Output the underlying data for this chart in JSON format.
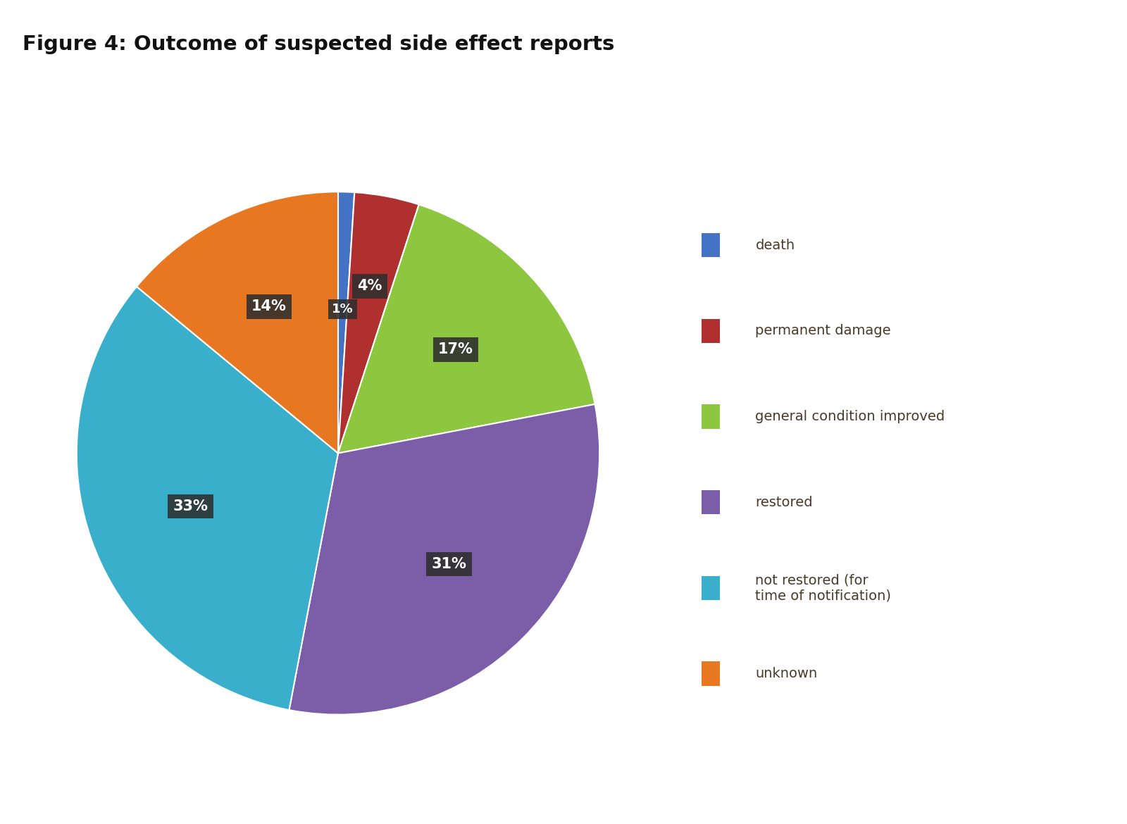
{
  "title": "Figure 4: Outcome of suspected side effect reports",
  "title_fontsize": 21,
  "title_fontweight": "bold",
  "slices": [
    {
      "label": "death",
      "value": 1,
      "color": "#4472C4",
      "pct": "1%"
    },
    {
      "label": "permanent damage",
      "value": 4,
      "color": "#B03030",
      "pct": "4%"
    },
    {
      "label": "general condition improved",
      "value": 17,
      "color": "#8DC63F",
      "pct": "17%"
    },
    {
      "label": "restored",
      "value": 31,
      "color": "#7B5EA7",
      "pct": "31%"
    },
    {
      "label": "not restored (for\ntime of notification)",
      "value": 33,
      "color": "#3AAFCC",
      "pct": "33%"
    },
    {
      "label": "unknown",
      "value": 14,
      "color": "#E87722",
      "pct": "14%"
    }
  ],
  "bg_color_top": "#C8CBCC",
  "bg_color_bottom": "#A8AAAB",
  "title_bg": "#FFFFFF",
  "legend_bg": "#D5D7D8",
  "label_box_color": "#2E2E2E",
  "label_text_color": "#FFFFFF",
  "legend_text_color": "#4A3A28",
  "figsize": [
    16.0,
    11.7
  ],
  "dpi": 100
}
